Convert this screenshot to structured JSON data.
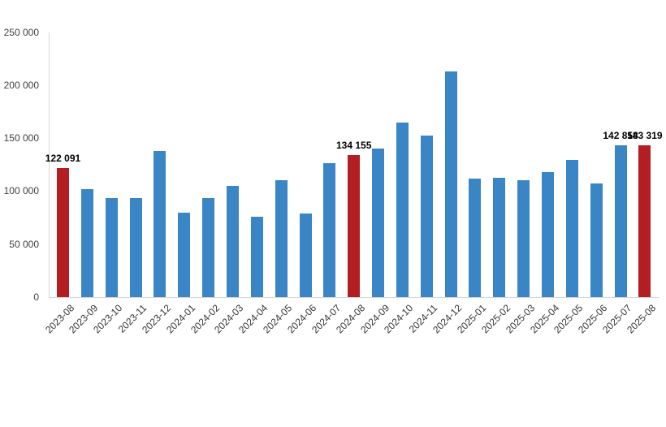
{
  "chart_data": {
    "type": "bar",
    "title": "",
    "xlabel": "",
    "ylabel": "",
    "grid": "off",
    "legend": "none",
    "categories": [
      "2023-08",
      "2023-09",
      "2023-10",
      "2023-11",
      "2023-12",
      "2024-01",
      "2024-02",
      "2024-03",
      "2024-04",
      "2024-05",
      "2024-06",
      "2024-07",
      "2024-08",
      "2024-09",
      "2024-10",
      "2024-11",
      "2024-12",
      "2025-01",
      "2025-02",
      "2025-03",
      "2025-04",
      "2025-05",
      "2025-06",
      "2025-07",
      "2025-08"
    ],
    "values": [
      122091,
      102000,
      93500,
      93500,
      138000,
      79500,
      93500,
      105000,
      75500,
      110000,
      79000,
      126500,
      134155,
      140500,
      165000,
      152000,
      212500,
      112000,
      112500,
      110000,
      118000,
      129500,
      107000,
      142858,
      143319
    ],
    "bar_color": "#3a85c6",
    "highlight_color": "#b41e23",
    "highlight_indices": [
      0,
      12,
      24
    ],
    "annotations": [
      {
        "index": 0,
        "text": "122 091"
      },
      {
        "index": 12,
        "text": "134 155"
      },
      {
        "index": 23,
        "text": "142 858"
      },
      {
        "index": 24,
        "text": "143 319"
      }
    ],
    "y_axis": {
      "ylim": [
        0,
        250000
      ],
      "tick_values": [
        0,
        50000,
        100000,
        150000,
        200000,
        250000
      ],
      "ticks": [
        "0",
        "50 000",
        "100 000",
        "150 000",
        "200 000",
        "250 000"
      ]
    }
  }
}
